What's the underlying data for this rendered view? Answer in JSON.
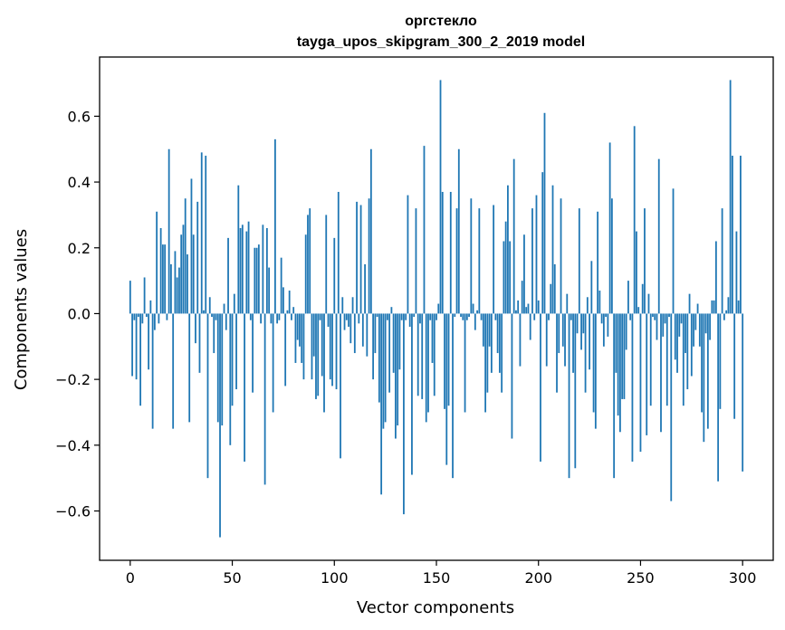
{
  "chart_data": {
    "type": "bar",
    "title_line1": "оргстекло",
    "title_line2": "tayga_upos_skipgram_300_2_2019 model",
    "xlabel": "Vector components",
    "ylabel": "Components values",
    "xlim": [
      -15,
      315
    ],
    "ylim": [
      -0.75,
      0.78
    ],
    "x_ticks": [
      0,
      50,
      100,
      150,
      200,
      250,
      300
    ],
    "x_tick_labels": [
      "0",
      "50",
      "100",
      "150",
      "200",
      "250",
      "300"
    ],
    "y_ticks": [
      -0.6,
      -0.4,
      -0.2,
      0.0,
      0.2,
      0.4,
      0.6
    ],
    "y_tick_labels": [
      "−0.6",
      "−0.4",
      "−0.2",
      "0.0",
      "0.2",
      "0.4",
      "0.6"
    ],
    "bar_color": "#1f77b4",
    "grid": false,
    "values": [
      0.1,
      -0.19,
      -0.02,
      -0.2,
      -0.01,
      -0.28,
      -0.03,
      0.11,
      -0.01,
      -0.17,
      0.04,
      -0.35,
      -0.05,
      0.31,
      -0.03,
      0.26,
      0.21,
      0.21,
      -0.02,
      0.5,
      0.15,
      -0.35,
      0.19,
      0.11,
      0.14,
      0.24,
      0.27,
      0.35,
      0.18,
      -0.33,
      0.41,
      0.24,
      -0.09,
      0.34,
      -0.18,
      0.49,
      0.01,
      0.48,
      -0.5,
      0.05,
      -0.01,
      -0.12,
      -0.02,
      -0.33,
      -0.68,
      -0.34,
      0.03,
      -0.05,
      0.23,
      -0.4,
      -0.28,
      0.06,
      -0.23,
      0.39,
      0.26,
      0.27,
      -0.45,
      0.25,
      0.28,
      -0.02,
      -0.24,
      0.2,
      0.2,
      0.21,
      -0.03,
      0.27,
      -0.52,
      0.26,
      0.14,
      -0.03,
      -0.3,
      0.53,
      -0.03,
      -0.02,
      0.17,
      0.08,
      -0.22,
      0.01,
      0.07,
      -0.02,
      0.02,
      -0.15,
      -0.08,
      -0.1,
      -0.15,
      -0.2,
      0.24,
      0.3,
      0.32,
      -0.2,
      -0.13,
      -0.26,
      -0.25,
      -0.02,
      -0.19,
      -0.3,
      0.3,
      -0.04,
      -0.2,
      -0.22,
      0.23,
      -0.23,
      0.37,
      -0.44,
      0.05,
      -0.05,
      -0.02,
      -0.04,
      -0.09,
      0.05,
      -0.12,
      0.34,
      -0.03,
      0.33,
      -0.1,
      0.15,
      -0.13,
      0.35,
      0.5,
      -0.2,
      -0.12,
      -0.01,
      -0.27,
      -0.55,
      -0.35,
      -0.33,
      -0.02,
      -0.24,
      0.02,
      -0.18,
      -0.38,
      -0.34,
      -0.17,
      -0.02,
      -0.61,
      -0.02,
      0.36,
      -0.04,
      -0.49,
      -0.01,
      0.32,
      -0.25,
      -0.03,
      -0.26,
      0.51,
      -0.33,
      -0.3,
      -0.02,
      -0.15,
      -0.25,
      -0.02,
      0.03,
      0.71,
      0.37,
      -0.29,
      -0.46,
      -0.28,
      0.37,
      -0.5,
      -0.01,
      0.32,
      0.5,
      -0.01,
      -0.02,
      -0.3,
      -0.02,
      -0.01,
      0.35,
      0.03,
      -0.05,
      0.01,
      0.32,
      -0.02,
      -0.1,
      -0.3,
      -0.24,
      -0.1,
      -0.18,
      0.33,
      -0.02,
      -0.12,
      -0.18,
      -0.24,
      0.22,
      0.28,
      0.39,
      0.22,
      -0.38,
      0.47,
      0.01,
      0.04,
      -0.16,
      0.1,
      0.24,
      0.02,
      0.03,
      -0.08,
      0.32,
      -0.02,
      0.36,
      0.04,
      -0.45,
      0.43,
      0.61,
      -0.16,
      -0.02,
      0.09,
      0.39,
      0.15,
      -0.24,
      -0.12,
      0.35,
      -0.1,
      -0.16,
      0.06,
      -0.5,
      -0.02,
      -0.18,
      -0.47,
      -0.06,
      0.32,
      -0.11,
      -0.06,
      -0.24,
      0.05,
      -0.17,
      0.16,
      -0.3,
      -0.35,
      0.31,
      0.07,
      -0.03,
      -0.1,
      -0.01,
      -0.07,
      0.52,
      0.35,
      -0.5,
      -0.18,
      -0.31,
      -0.36,
      -0.26,
      -0.26,
      -0.11,
      0.1,
      -0.02,
      -0.45,
      0.57,
      0.25,
      0.02,
      -0.42,
      0.09,
      0.32,
      -0.37,
      0.06,
      -0.28,
      -0.01,
      -0.02,
      -0.08,
      0.47,
      -0.36,
      -0.07,
      -0.03,
      -0.28,
      -0.01,
      -0.57,
      0.38,
      -0.14,
      -0.18,
      -0.07,
      -0.03,
      -0.28,
      -0.12,
      -0.23,
      0.06,
      -0.19,
      -0.1,
      -0.05,
      0.03,
      -0.1,
      -0.3,
      -0.39,
      -0.06,
      -0.35,
      -0.08,
      0.04,
      0.04,
      0.22,
      -0.51,
      -0.29,
      0.32,
      -0.02,
      0.01,
      0.05,
      0.71,
      0.48,
      -0.32,
      0.25,
      0.04,
      0.48,
      -0.48
    ]
  }
}
